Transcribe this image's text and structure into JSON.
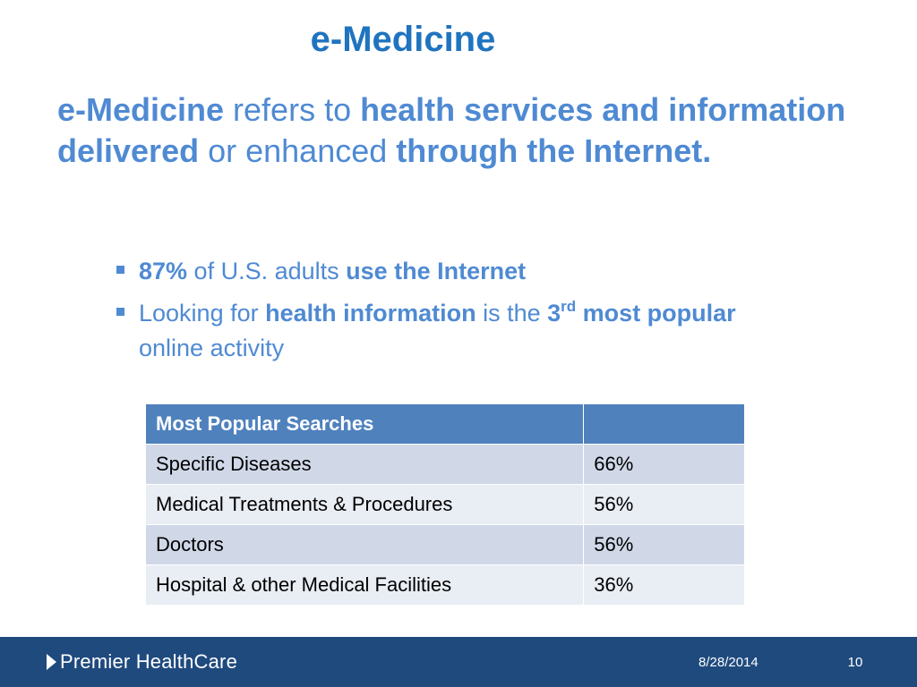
{
  "slide": {
    "title": "e-Medicine",
    "intro": {
      "term": "e-Medicine",
      "text_1": " refers to ",
      "bold_1": "health services and information delivered",
      "text_2": " or enhanced ",
      "bold_2": "through the Internet."
    },
    "bullets": [
      {
        "bold_1": "87%",
        "text_1": " of U.S. adults ",
        "bold_2": "use the Internet"
      },
      {
        "text_1": "Looking for ",
        "bold_1": "health information",
        "text_2": " is the ",
        "bold_2": "3",
        "superscript": "rd",
        "bold_3": " most popular",
        "text_3": " online activity"
      }
    ],
    "table": {
      "header": [
        "Most Popular Searches",
        ""
      ],
      "rows": [
        [
          "Specific Diseases",
          "66%"
        ],
        [
          "Medical Treatments & Procedures",
          "56%"
        ],
        [
          "Doctors",
          "56%"
        ],
        [
          "Hospital & other Medical Facilities",
          "36%"
        ]
      ]
    }
  },
  "footer": {
    "brand": "Premier HealthCare",
    "date": "8/28/2014",
    "page": "10"
  },
  "colors": {
    "title": "#1f74bf",
    "body_text": "#4f8ad3",
    "table_header": "#4f81bd",
    "table_row_dark": "#d0d8e8",
    "table_row_light": "#e9edf4",
    "footer_bar": "#1f4a7e"
  },
  "icons": {
    "bullet": "square-bullet-icon",
    "brand_mark": "play-triangle-icon"
  }
}
